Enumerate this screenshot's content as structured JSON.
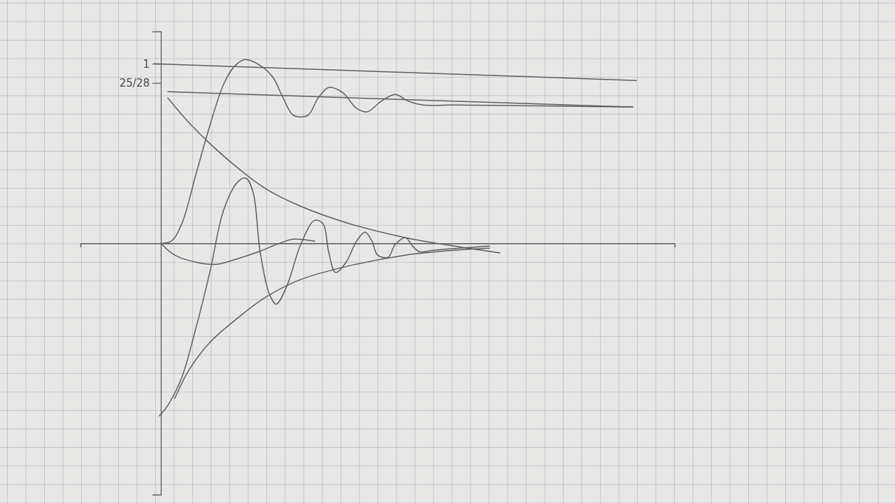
{
  "chart_data": {
    "type": "line",
    "xlim": [
      -1.15,
      7.35
    ],
    "xticks": [],
    "ylim": [
      -1.4,
      1.18
    ],
    "yticks": [
      1,
      {
        "value": 0.8929,
        "label": "25/28"
      }
    ],
    "tick_labels": "y",
    "series": [
      {
        "color": "#5c5c5c",
        "x": [
          -0.1,
          6.8
        ],
        "values": [
          1.0,
          0.907
        ]
      },
      {
        "color": "#5c5c5c",
        "x": [
          0.1,
          6.75
        ],
        "values": [
          0.844,
          0.759
        ]
      },
      {
        "color": "#5c5c5c",
        "x": [
          0,
          0.15,
          0.3,
          0.5,
          0.7,
          0.9,
          1.05,
          1.2,
          1.4,
          1.6,
          1.75,
          1.9,
          2.1,
          2.25,
          2.4,
          2.6,
          2.8,
          2.95,
          3.15,
          3.35,
          3.55,
          3.75,
          4.2,
          6.75
        ],
        "values": [
          0,
          0.012,
          0.109,
          0.381,
          0.654,
          0.887,
          0.984,
          1.023,
          0.996,
          0.926,
          0.809,
          0.712,
          0.712,
          0.809,
          0.868,
          0.84,
          0.751,
          0.732,
          0.79,
          0.829,
          0.79,
          0.77,
          0.77,
          0.759
        ]
      },
      {
        "color": "#5c5c5c",
        "x": [
          -0.02,
          0.1,
          0.3,
          0.5,
          0.7,
          0.9,
          1.1,
          1.22,
          1.32,
          1.42,
          1.55,
          1.65,
          1.8,
          2.0,
          2.2,
          2.32,
          2.4,
          2.5,
          2.65,
          2.8,
          2.92,
          3.02,
          3.1,
          3.25,
          3.35,
          3.5,
          3.6,
          3.7,
          3.9,
          4.7
        ],
        "values": [
          -0.961,
          -0.903,
          -0.747,
          -0.475,
          -0.163,
          0.187,
          0.342,
          0.362,
          0.284,
          -0.047,
          -0.28,
          -0.339,
          -0.241,
          -0.008,
          0.128,
          0.109,
          -0.047,
          -0.163,
          -0.105,
          0.012,
          0.062,
          0.012,
          -0.066,
          -0.078,
          -0.008,
          0.031,
          -0.016,
          -0.047,
          -0.039,
          -0.016
        ]
      },
      {
        "color": "#5c5c5c",
        "x": [
          0.1,
          0.4,
          0.7,
          1.1,
          1.5,
          2.0,
          2.7,
          3.5,
          4.2,
          4.85
        ],
        "values": [
          0.809,
          0.673,
          0.556,
          0.42,
          0.304,
          0.206,
          0.109,
          0.031,
          -0.016,
          -0.054
        ]
      },
      {
        "color": "#5c5c5c",
        "x": [
          0.2,
          0.4,
          0.7,
          1.1,
          1.5,
          2.0,
          2.7,
          3.5,
          4.2,
          4.7
        ],
        "values": [
          -0.864,
          -0.708,
          -0.553,
          -0.416,
          -0.3,
          -0.202,
          -0.125,
          -0.066,
          -0.039,
          -0.027
        ]
      },
      {
        "color": "#5c5c5c",
        "x": [
          0,
          0.2,
          0.5,
          0.8,
          1.1,
          1.4,
          1.7,
          1.9,
          2.2
        ],
        "values": [
          0,
          -0.066,
          -0.105,
          -0.117,
          -0.086,
          -0.047,
          0,
          0.023,
          0.012
        ]
      }
    ]
  }
}
